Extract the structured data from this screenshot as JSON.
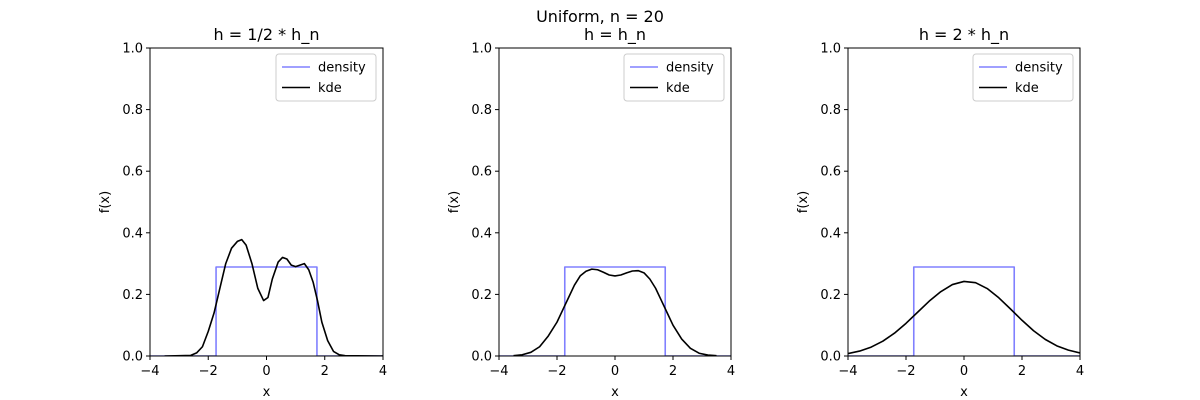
{
  "suptitle": "Uniform, n = 20",
  "colors": {
    "density": "#8080ff",
    "kde": "#000000",
    "axes": "#000000",
    "legend_border": "#cccccc"
  },
  "chart_data": [
    {
      "type": "line",
      "title": "h = 1/2 * h_n",
      "xlabel": "x",
      "ylabel": "f(x)",
      "xlim": [
        -4,
        4
      ],
      "ylim": [
        0,
        1
      ],
      "xticks": [
        -4,
        -2,
        0,
        2,
        4
      ],
      "yticks": [
        0.0,
        0.2,
        0.4,
        0.6,
        0.8,
        1.0
      ],
      "ytick_labels": [
        "0.0",
        "0.2",
        "0.4",
        "0.6",
        "0.8",
        "1.0"
      ],
      "grid": false,
      "legend": "top-right",
      "series": [
        {
          "name": "density",
          "color": "#8080ff",
          "x": [
            -4,
            -1.732,
            -1.732,
            1.732,
            1.732,
            4
          ],
          "y": [
            0,
            0,
            0.289,
            0.289,
            0,
            0
          ]
        },
        {
          "name": "kde",
          "color": "#000000",
          "x": [
            -3.5,
            -2.6,
            -2.4,
            -2.2,
            -2.0,
            -1.8,
            -1.6,
            -1.4,
            -1.2,
            -1.0,
            -0.85,
            -0.7,
            -0.5,
            -0.3,
            -0.1,
            0.05,
            0.2,
            0.4,
            0.55,
            0.7,
            0.85,
            1.0,
            1.15,
            1.3,
            1.45,
            1.6,
            1.75,
            1.9,
            2.1,
            2.3,
            2.5,
            2.7,
            4.0
          ],
          "y": [
            0,
            0.002,
            0.01,
            0.03,
            0.08,
            0.14,
            0.22,
            0.3,
            0.35,
            0.372,
            0.378,
            0.36,
            0.3,
            0.22,
            0.18,
            0.19,
            0.25,
            0.305,
            0.32,
            0.315,
            0.295,
            0.29,
            0.295,
            0.3,
            0.28,
            0.24,
            0.18,
            0.11,
            0.05,
            0.015,
            0.004,
            0.001,
            0
          ]
        }
      ]
    },
    {
      "type": "line",
      "title": "h = h_n",
      "xlabel": "x",
      "ylabel": "f(x)",
      "xlim": [
        -4,
        4
      ],
      "ylim": [
        0,
        1
      ],
      "xticks": [
        -4,
        -2,
        0,
        2,
        4
      ],
      "yticks": [
        0.0,
        0.2,
        0.4,
        0.6,
        0.8,
        1.0
      ],
      "ytick_labels": [
        "0.0",
        "0.2",
        "0.4",
        "0.6",
        "0.8",
        "1.0"
      ],
      "grid": false,
      "legend": "top-right",
      "series": [
        {
          "name": "density",
          "color": "#8080ff",
          "x": [
            -4,
            -1.732,
            -1.732,
            1.732,
            1.732,
            4
          ],
          "y": [
            0,
            0,
            0.289,
            0.289,
            0,
            0
          ]
        },
        {
          "name": "kde",
          "color": "#000000",
          "x": [
            -3.5,
            -3.2,
            -2.9,
            -2.6,
            -2.3,
            -2.0,
            -1.8,
            -1.6,
            -1.4,
            -1.2,
            -1.0,
            -0.8,
            -0.6,
            -0.4,
            -0.2,
            0.0,
            0.2,
            0.4,
            0.6,
            0.8,
            1.0,
            1.2,
            1.4,
            1.6,
            1.8,
            2.0,
            2.3,
            2.6,
            2.9,
            3.2,
            3.5
          ],
          "y": [
            0.001,
            0.004,
            0.012,
            0.03,
            0.065,
            0.11,
            0.15,
            0.19,
            0.23,
            0.26,
            0.275,
            0.282,
            0.28,
            0.272,
            0.263,
            0.26,
            0.263,
            0.27,
            0.276,
            0.277,
            0.27,
            0.25,
            0.22,
            0.18,
            0.14,
            0.1,
            0.055,
            0.025,
            0.009,
            0.003,
            0.001
          ]
        }
      ]
    },
    {
      "type": "line",
      "title": "h = 2 * h_n",
      "xlabel": "x",
      "ylabel": "f(x)",
      "xlim": [
        -4,
        4
      ],
      "ylim": [
        0,
        1
      ],
      "xticks": [
        -4,
        -2,
        0,
        2,
        4
      ],
      "yticks": [
        0.0,
        0.2,
        0.4,
        0.6,
        0.8,
        1.0
      ],
      "ytick_labels": [
        "0.0",
        "0.2",
        "0.4",
        "0.6",
        "0.8",
        "1.0"
      ],
      "grid": false,
      "legend": "top-right",
      "series": [
        {
          "name": "density",
          "color": "#8080ff",
          "x": [
            -4,
            -1.732,
            -1.732,
            1.732,
            1.732,
            4
          ],
          "y": [
            0,
            0,
            0.289,
            0.289,
            0,
            0
          ]
        },
        {
          "name": "kde",
          "color": "#000000",
          "x": [
            -4.0,
            -3.6,
            -3.2,
            -2.8,
            -2.4,
            -2.0,
            -1.6,
            -1.2,
            -0.8,
            -0.4,
            0.0,
            0.4,
            0.8,
            1.2,
            1.6,
            2.0,
            2.4,
            2.8,
            3.2,
            3.6,
            4.0
          ],
          "y": [
            0.008,
            0.016,
            0.029,
            0.048,
            0.074,
            0.106,
            0.142,
            0.178,
            0.209,
            0.232,
            0.242,
            0.238,
            0.219,
            0.189,
            0.153,
            0.116,
            0.082,
            0.054,
            0.033,
            0.019,
            0.01
          ]
        }
      ]
    }
  ]
}
